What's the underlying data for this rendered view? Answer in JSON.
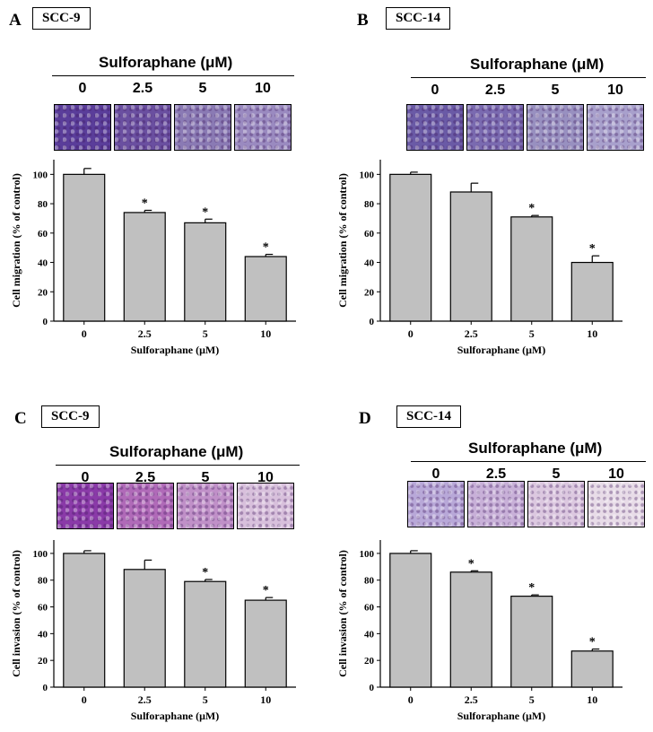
{
  "panels": [
    {
      "letter": "A",
      "cell_line": "SCC-9",
      "treatment_title": "Sulforaphane (μM)",
      "conc_labels": [
        "0",
        "2.5",
        "5",
        "10"
      ],
      "micro_colors": [
        "#5a3d9a",
        "#6a4fa0",
        "#8a7ab4",
        "#9a8ac0"
      ]
    },
    {
      "letter": "B",
      "cell_line": "SCC-14",
      "treatment_title": "Sulforaphane (μM)",
      "conc_labels": [
        "0",
        "2.5",
        "5",
        "10"
      ],
      "micro_colors": [
        "#6a5aa6",
        "#7a6ab0",
        "#9890c0",
        "#a8a0cc"
      ]
    },
    {
      "letter": "C",
      "cell_line": "SCC-9",
      "treatment_title": "Sulforaphane (μM)",
      "conc_labels": [
        "0",
        "2.5",
        "5",
        "10"
      ],
      "micro_colors": [
        "#8a3aa8",
        "#b06ab8",
        "#c090c8",
        "#d8c0dc"
      ]
    },
    {
      "letter": "D",
      "cell_line": "SCC-14",
      "treatment_title": "Sulforaphane (μM)",
      "conc_labels": [
        "0",
        "2.5",
        "5",
        "10"
      ],
      "micro_colors": [
        "#b8a8d8",
        "#c8b0d8",
        "#dcc8e0",
        "#e8dce8"
      ]
    }
  ],
  "chart_data": [
    {
      "type": "bar",
      "title": "",
      "categories": [
        "0",
        "2.5",
        "5",
        "10"
      ],
      "values": [
        100,
        74,
        67,
        44
      ],
      "errors": [
        4,
        1.5,
        2.5,
        1.5
      ],
      "significance": [
        "",
        "*",
        "*",
        "*"
      ],
      "xlabel": "Sulforaphane (μM)",
      "ylabel": "Cell migration (% of control)",
      "ylim": [
        0,
        110
      ],
      "yticks": [
        0,
        20,
        40,
        60,
        80,
        100
      ]
    },
    {
      "type": "bar",
      "title": "",
      "categories": [
        "0",
        "2.5",
        "5",
        "10"
      ],
      "values": [
        100,
        88,
        71,
        40
      ],
      "errors": [
        1.5,
        6,
        1,
        4.5
      ],
      "significance": [
        "",
        "",
        "*",
        "*"
      ],
      "xlabel": "Sulforaphane (μM)",
      "ylabel": "Cell migration (% of control)",
      "ylim": [
        0,
        110
      ],
      "yticks": [
        0,
        20,
        40,
        60,
        80,
        100
      ]
    },
    {
      "type": "bar",
      "title": "",
      "categories": [
        "0",
        "2.5",
        "5",
        "10"
      ],
      "values": [
        100,
        88,
        79,
        65
      ],
      "errors": [
        2,
        7,
        1.5,
        2
      ],
      "significance": [
        "",
        "",
        "*",
        "*"
      ],
      "xlabel": "Sulforaphane (μM)",
      "ylabel": "Cell invasion (% of control)",
      "ylim": [
        0,
        110
      ],
      "yticks": [
        0,
        20,
        40,
        60,
        80,
        100
      ]
    },
    {
      "type": "bar",
      "title": "",
      "categories": [
        "0",
        "2.5",
        "5",
        "10"
      ],
      "values": [
        100,
        86,
        68,
        27
      ],
      "errors": [
        2,
        1,
        1,
        1.5
      ],
      "significance": [
        "",
        "*",
        "*",
        "*"
      ],
      "xlabel": "Sulforaphane (μM)",
      "ylabel": "Cell invasion (% of control)",
      "ylim": [
        0,
        110
      ],
      "yticks": [
        0,
        20,
        40,
        60,
        80,
        100
      ]
    }
  ]
}
